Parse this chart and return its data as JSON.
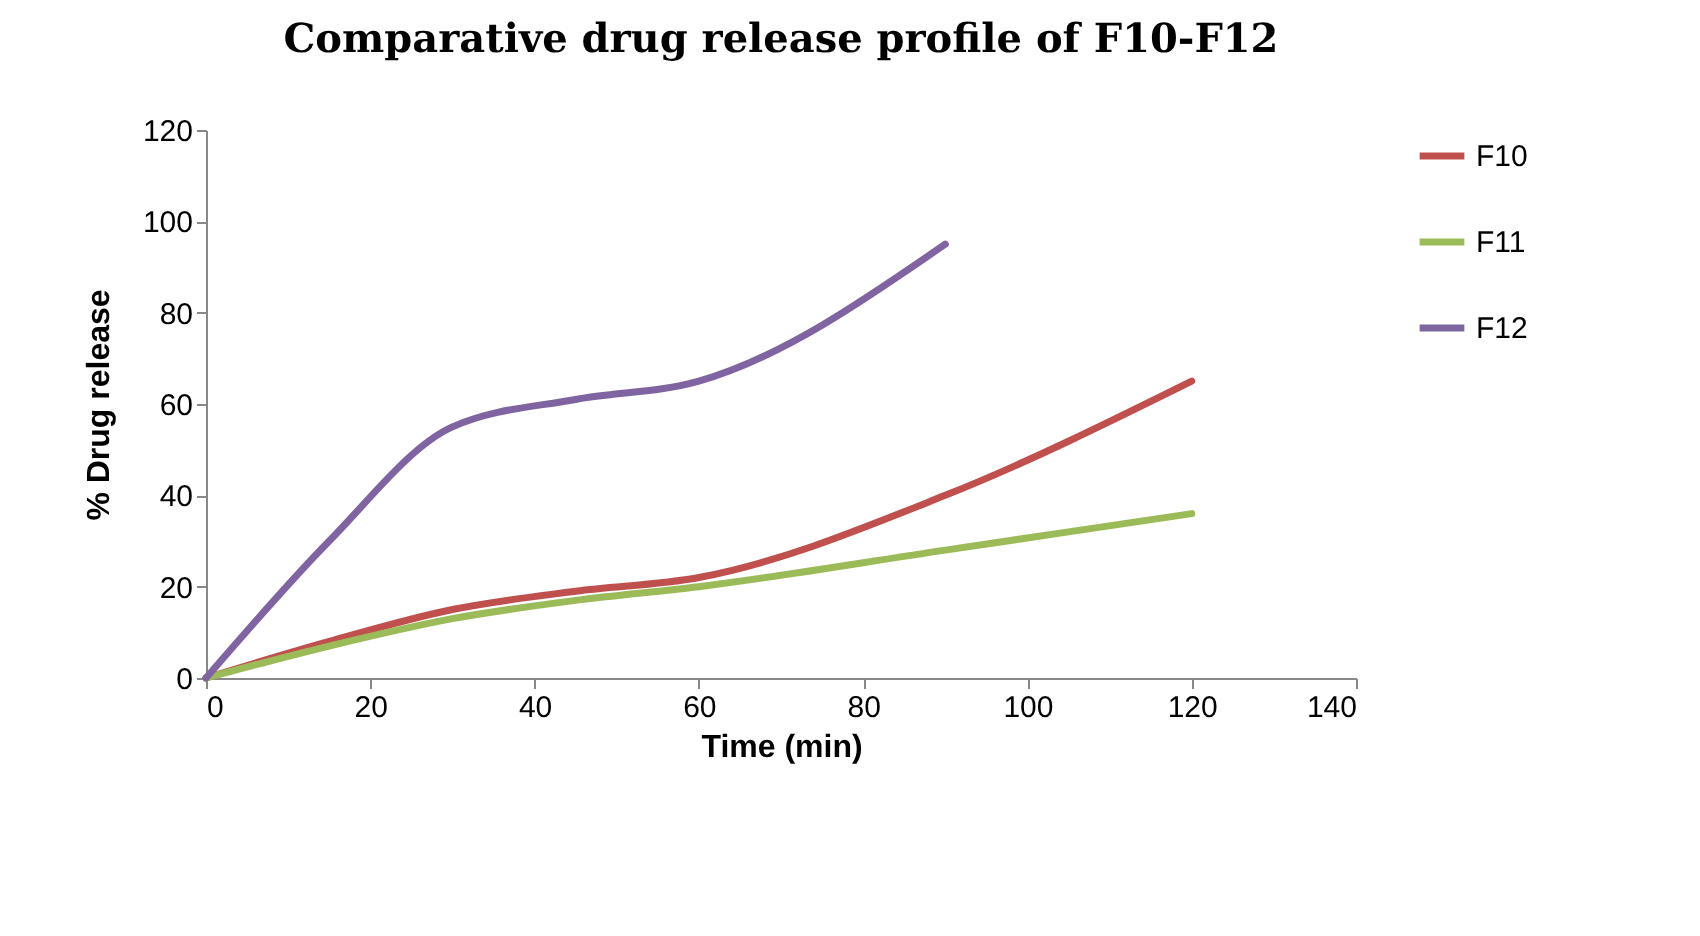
{
  "chart_data": {
    "type": "line",
    "title": "Comparative drug release profile of F10-F12",
    "xlabel": "Time (min)",
    "ylabel": "% Drug release",
    "xlim": [
      0,
      140
    ],
    "xticks": [
      0,
      20,
      40,
      60,
      80,
      100,
      120,
      140
    ],
    "ylim": [
      0,
      120
    ],
    "yticks": [
      0,
      20,
      40,
      60,
      80,
      100,
      120
    ],
    "grid": false,
    "legend": "right",
    "series": [
      {
        "name": "F10",
        "color": "#c0504d",
        "x": [
          0,
          15,
          30,
          45,
          60,
          90,
          120
        ],
        "values": [
          0,
          8,
          15,
          19,
          22,
          40,
          65
        ]
      },
      {
        "name": "F11",
        "color": "#9bbb59",
        "x": [
          0,
          15,
          30,
          45,
          60,
          90,
          120
        ],
        "values": [
          0,
          7,
          13,
          17,
          20,
          28,
          36
        ]
      },
      {
        "name": "F12",
        "color": "#8064a2",
        "x": [
          0,
          15,
          30,
          45,
          60,
          90
        ],
        "values": [
          0,
          30,
          55,
          61,
          65,
          95
        ]
      }
    ]
  }
}
